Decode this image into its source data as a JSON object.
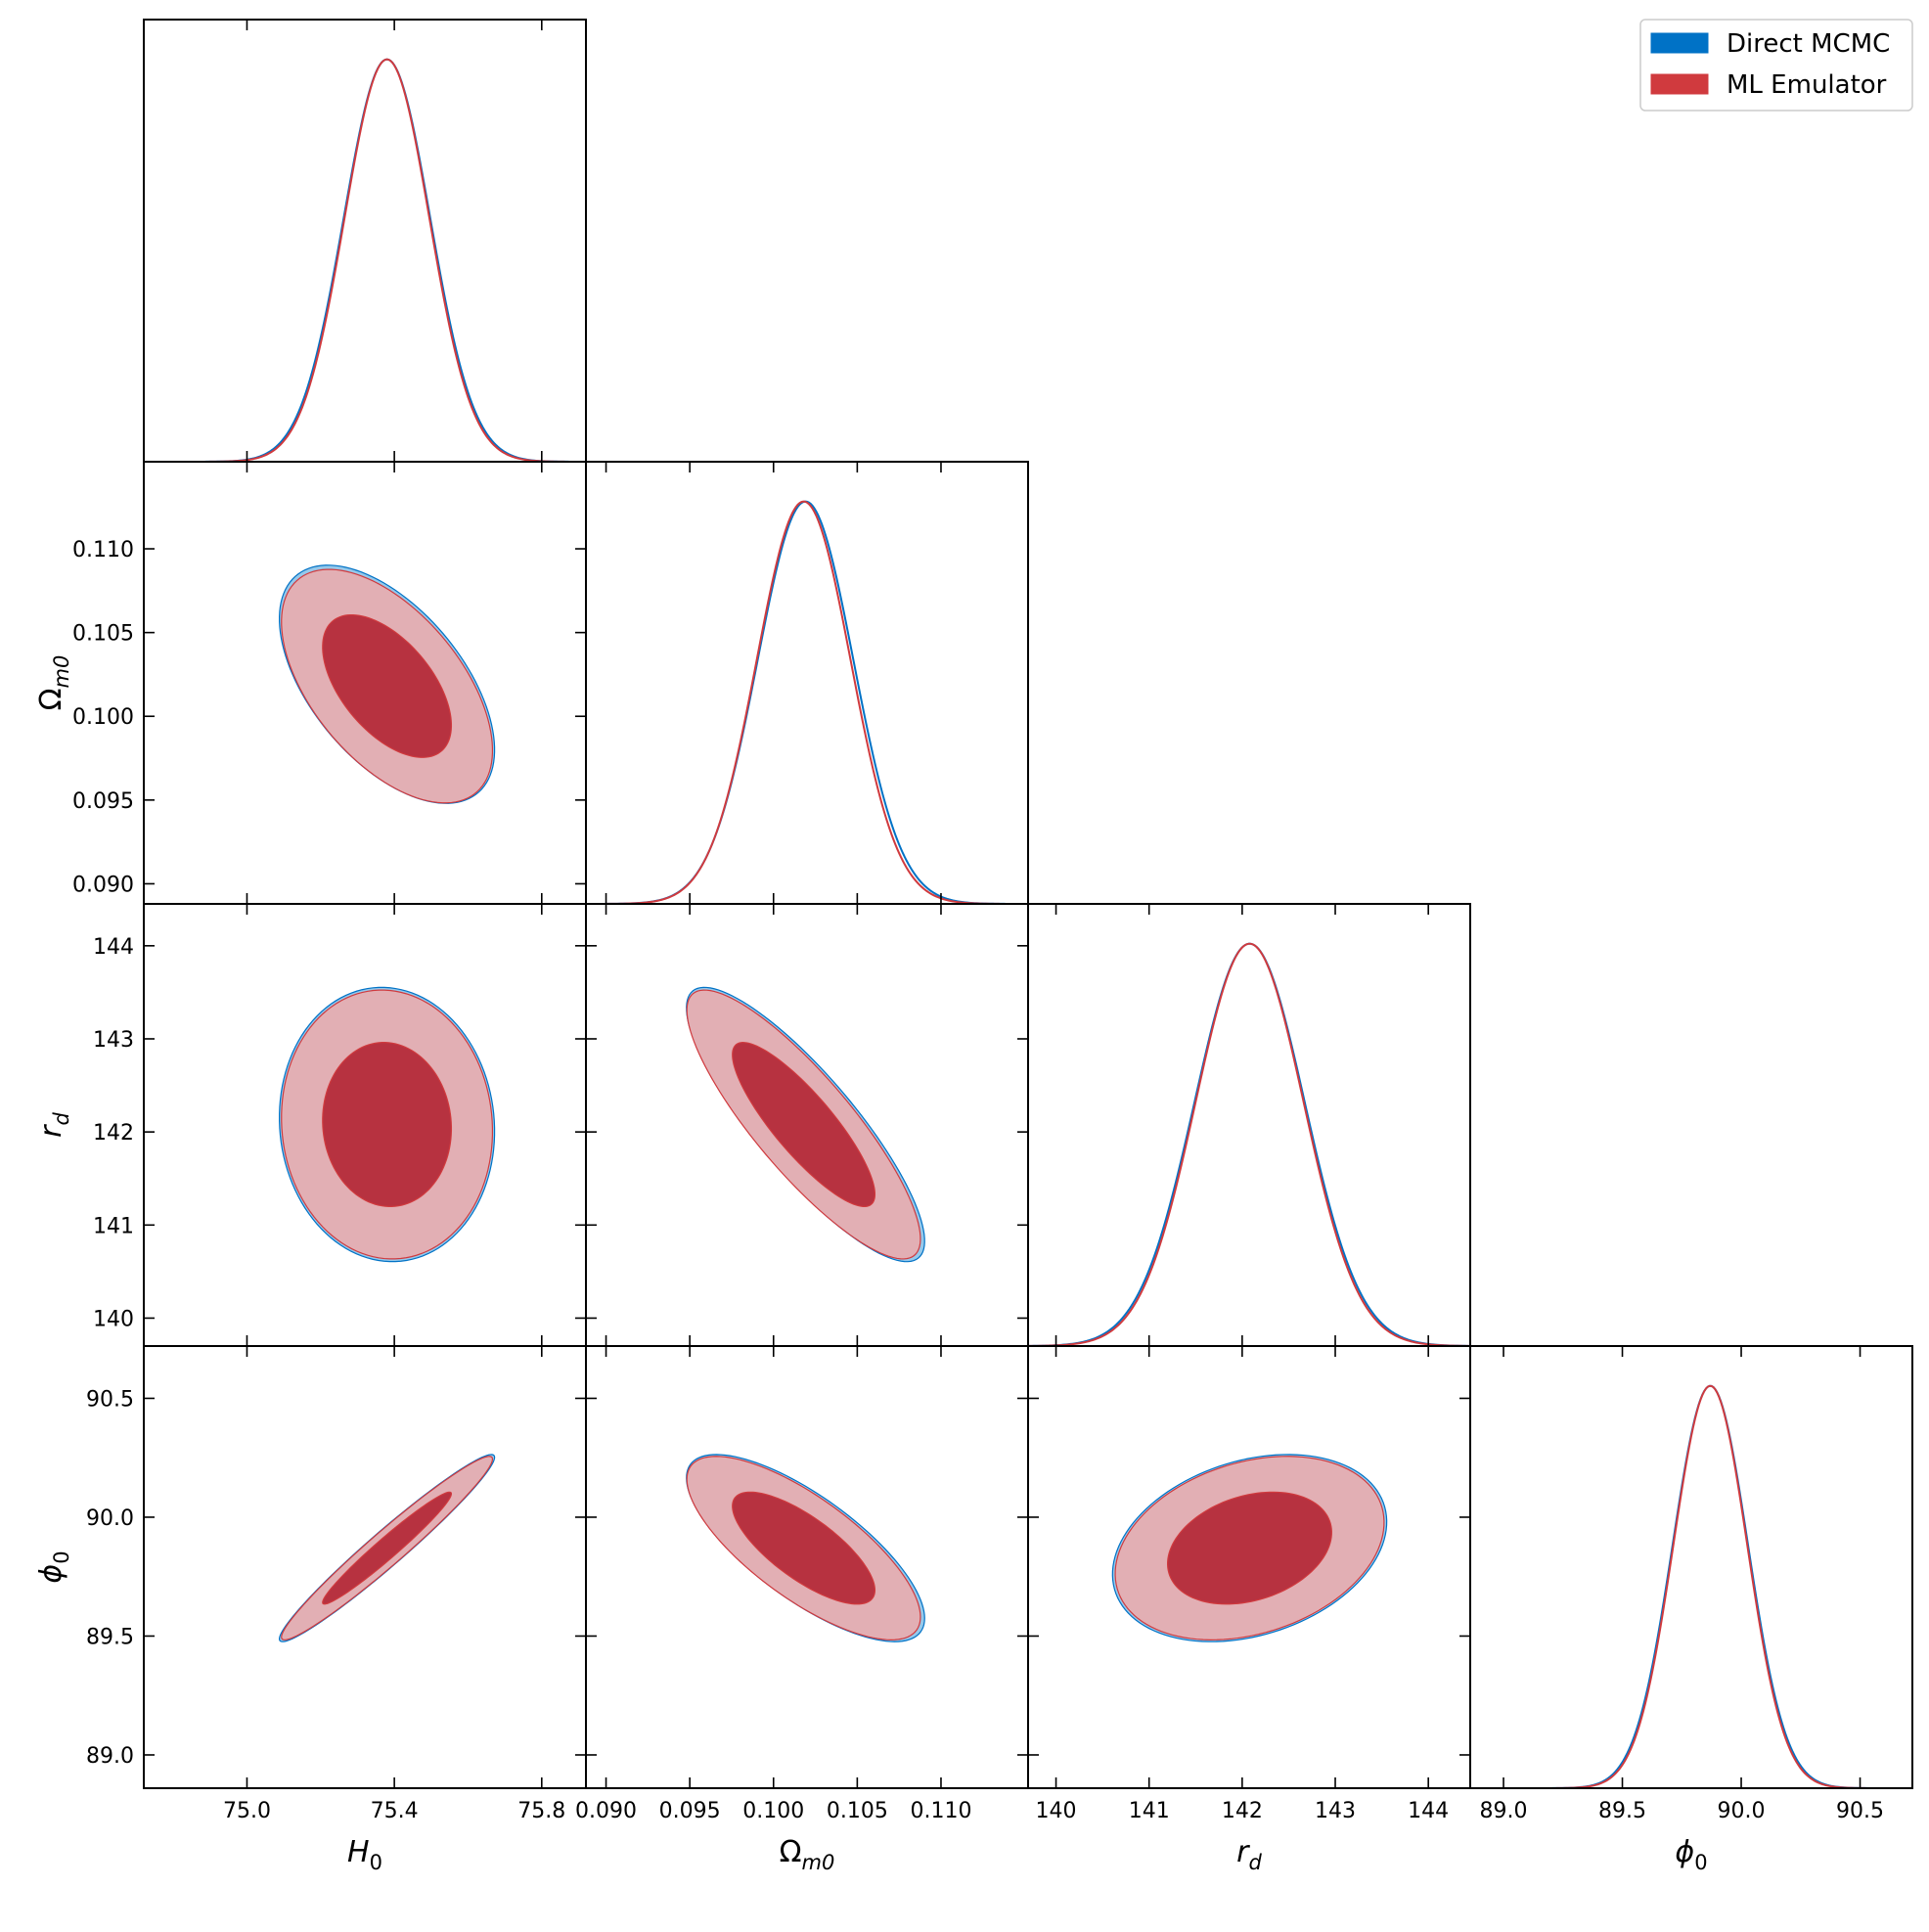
{
  "chart_data": {
    "type": "corner-plot",
    "parameters": [
      {
        "key": "H0",
        "base": "H",
        "sub": "0",
        "range": [
          74.72,
          75.92
        ],
        "ticks": [
          "75.0",
          "75.4",
          "75.8"
        ],
        "tick_values": [
          75.0,
          75.4,
          75.8
        ],
        "mean": 75.38,
        "sigma": 0.115
      },
      {
        "key": "Om",
        "base": "Ω",
        "sub": "m0",
        "range": [
          0.0888,
          0.1152
        ],
        "ticks": [
          "0.090",
          "0.095",
          "0.100",
          "0.105",
          "0.110"
        ],
        "tick_values": [
          0.09,
          0.095,
          0.1,
          0.105,
          0.11
        ],
        "mean": 0.1018,
        "sigma": 0.0028
      },
      {
        "key": "rd",
        "base": "r",
        "sub": "d",
        "range": [
          139.7,
          144.45
        ],
        "ticks": [
          "140",
          "141",
          "142",
          "143",
          "144"
        ],
        "tick_values": [
          140,
          141,
          142,
          143,
          144
        ],
        "mean": 142.08,
        "sigma": 0.58
      },
      {
        "key": "phi0",
        "base": "ϕ",
        "sub": "0",
        "range": [
          88.86,
          90.72
        ],
        "ticks": [
          "89.0",
          "89.5",
          "90.0",
          "90.5"
        ],
        "tick_values": [
          89.0,
          89.5,
          90.0,
          90.5
        ],
        "mean": 89.87,
        "sigma": 0.155
      }
    ],
    "series": [
      {
        "name": "Direct MCMC",
        "color": "#0072c6",
        "fill_outer": "#96c8ea",
        "fill_inner": "#2a7fc0",
        "mean_shift": [
          0.0,
          0.04,
          0.0,
          0.0
        ],
        "sigma_scale": 1.02
      },
      {
        "name": "ML Emulator",
        "color": "#d03a3e",
        "fill_outer": "#e2afb4",
        "fill_inner": "#b73240",
        "mean_shift": [
          0.0,
          0.0,
          0.0,
          0.0
        ],
        "sigma_scale": 1.0
      }
    ],
    "correlations": {
      "1,0": -0.55,
      "2,0": -0.05,
      "2,1": -0.85,
      "3,0": 0.97,
      "3,1": -0.75,
      "3,2": 0.28
    },
    "contour_levels_sigma": [
      1.52,
      2.49
    ],
    "legend": {
      "position": "top-right"
    }
  }
}
